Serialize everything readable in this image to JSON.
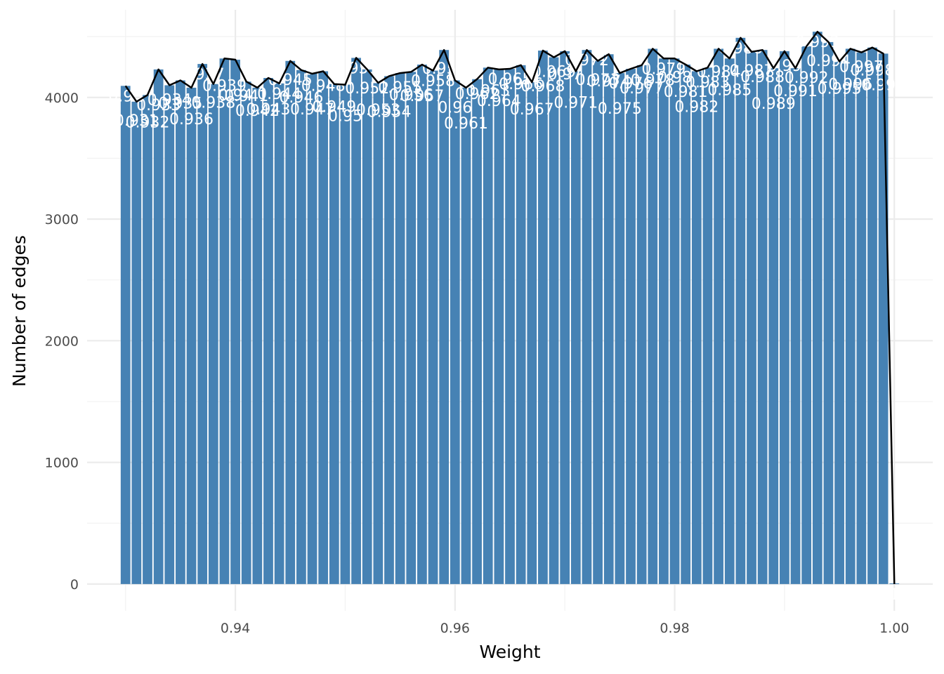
{
  "chart_data": {
    "type": "bar",
    "xlabel": "Weight",
    "ylabel": "Number of edges",
    "xlim": [
      0.9265,
      1.0035
    ],
    "ylim": [
      -220,
      4720
    ],
    "x_ticks": [
      0.94,
      0.96,
      0.98,
      1.0
    ],
    "x_tick_labels": [
      "0.94",
      "0.96",
      "0.98",
      "1.00"
    ],
    "y_ticks": [
      0,
      1000,
      2000,
      3000,
      4000
    ],
    "y_tick_labels": [
      "0",
      "1000",
      "2000",
      "3000",
      "4000"
    ],
    "grid": true,
    "bar_color": "#4682B4",
    "line_color": "#000000",
    "overlay": "line through bar tops",
    "bin_width": 0.001,
    "x": [
      0.93,
      0.931,
      0.932,
      0.933,
      0.934,
      0.935,
      0.936,
      0.937,
      0.938,
      0.939,
      0.94,
      0.941,
      0.942,
      0.943,
      0.944,
      0.945,
      0.946,
      0.947,
      0.948,
      0.949,
      0.95,
      0.951,
      0.952,
      0.953,
      0.954,
      0.955,
      0.956,
      0.957,
      0.958,
      0.959,
      0.96,
      0.961,
      0.962,
      0.963,
      0.964,
      0.965,
      0.966,
      0.967,
      0.968,
      0.969,
      0.97,
      0.971,
      0.972,
      0.973,
      0.974,
      0.975,
      0.976,
      0.977,
      0.978,
      0.979,
      0.98,
      0.981,
      0.982,
      0.983,
      0.984,
      0.985,
      0.986,
      0.987,
      0.988,
      0.989,
      0.99,
      0.991,
      0.992,
      0.993,
      0.994,
      0.995,
      0.996,
      0.997,
      0.998,
      0.999,
      1.0
    ],
    "values": [
      4095,
      3965,
      4020,
      4230,
      4100,
      4140,
      4080,
      4275,
      4110,
      4320,
      4310,
      4130,
      4080,
      4160,
      4115,
      4300,
      4225,
      4195,
      4215,
      4110,
      4105,
      4325,
      4230,
      4120,
      4175,
      4200,
      4210,
      4270,
      4220,
      4390,
      4140,
      4080,
      4150,
      4245,
      4230,
      4235,
      4265,
      4125,
      4385,
      4330,
      4380,
      4215,
      4390,
      4300,
      4355,
      4200,
      4235,
      4265,
      4400,
      4320,
      4320,
      4270,
      4215,
      4245,
      4400,
      4320,
      4490,
      4375,
      4390,
      4240,
      4380,
      4240,
      4420,
      4540,
      4455,
      4295,
      4400,
      4370,
      4410,
      4360,
      0
    ],
    "labels": [
      "0.93",
      "0.931",
      "0.932",
      "0.933",
      "0.934",
      "0.935",
      "0.936",
      "0.937",
      "0.938",
      "0.939",
      "0.94",
      "0.941",
      "0.942",
      "0.943",
      "0.944",
      "0.945",
      "0.946",
      "0.947",
      "0.948",
      "0.949",
      "0.95",
      "0.951",
      "0.952",
      "0.953",
      "0.954",
      "0.955",
      "0.956",
      "0.957",
      "0.958",
      "0.959",
      "0.96",
      "0.961",
      "0.962",
      "0.963",
      "0.964",
      "0.965",
      "0.966",
      "0.967",
      "0.968",
      "0.969",
      "0.97",
      "0.971",
      "0.972",
      "0.973",
      "0.974",
      "0.975",
      "0.976",
      "0.977",
      "0.978",
      "0.979",
      "0.98",
      "0.981",
      "0.982",
      "0.983",
      "0.984",
      "0.985",
      "0.986",
      "0.987",
      "0.988",
      "0.989",
      "0.99",
      "0.991",
      "0.992",
      "0.993",
      "0.994",
      "0.995",
      "0.996",
      "0.997",
      "0.998",
      "0.999",
      "1"
    ]
  }
}
